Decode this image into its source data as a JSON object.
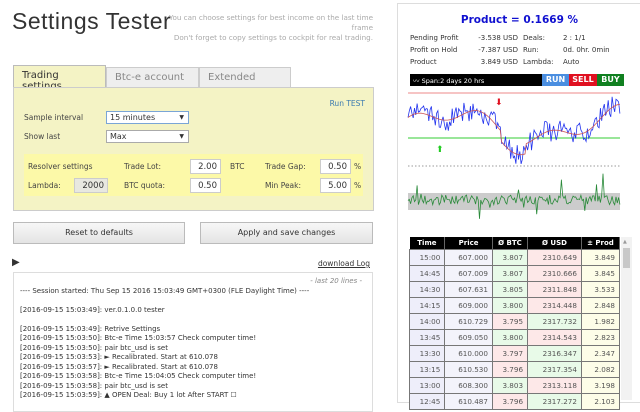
{
  "header": {
    "title": "Settings Tester",
    "hint1": "You can choose settings for best income on the last time frame",
    "hint2": "Don't forget to copy settings to cockpit for real trading."
  },
  "tabs": [
    "Trading settings",
    "Btc-e account",
    "Extended"
  ],
  "settings": {
    "run_test": "Run TEST",
    "sample_interval_label": "Sample interval",
    "sample_interval_value": "15 minutes",
    "show_last_label": "Show last",
    "show_last_value": "Max",
    "resolver_label": "Resolver settings",
    "lambda_label": "Lambda:",
    "lambda_value": "2000",
    "trade_lot_label": "Trade Lot:",
    "trade_lot_value": "2.00",
    "trade_lot_unit": "BTC",
    "btc_quota_label": "BTC quota:",
    "btc_quota_value": "0.50",
    "trade_gap_label": "Trade Gap:",
    "trade_gap_value": "0.50",
    "trade_gap_unit": "%",
    "min_peak_label": "Min Peak:",
    "min_peak_value": "5.00",
    "min_peak_unit": "%"
  },
  "buttons": {
    "reset": "Reset to defaults",
    "apply": "Apply and save changes"
  },
  "log": {
    "download": "download Log",
    "last_lines": "- last 20 lines -",
    "lines": [
      "---- Session started: Thu Sep 15 2016 15:03:49 GMT+0300 (FLE Daylight Time) ----",
      "",
      "[2016-09-15 15:03:49]: ver.0.1.0.0 tester",
      "",
      "[2016-09-15 15:03:49]: Retrive Settings",
      "[2016-09-15 15:03:50]: Btc-e Time 15:03:57 Check computer time!",
      "[2016-09-15 15:03:50]: pair btc_usd is set",
      "[2016-09-15 15:03:53]: ► Recalibrated. Start at 610.078",
      "[2016-09-15 15:03:57]: ► Recalibrated. Start at 610.078",
      "[2016-09-15 15:03:58]: Btc-e Time 15:04:05 Check computer time!",
      "[2016-09-15 15:03:58]: pair btc_usd is set",
      "[2016-09-15 15:03:59]: ▲ OPEN Deal: Buy 1 lot After START   ☐"
    ]
  },
  "summary": {
    "product_title": "Product = 0.1669 %",
    "stats": [
      [
        "Pending Profit",
        "-3.538 USD",
        "Deals:",
        "2 : 1/1"
      ],
      [
        "Profit on Hold",
        "-7.387 USD",
        "Run:",
        "0d. 0hr. 0min"
      ],
      [
        "Product",
        "3.849 USD",
        "Lambda:",
        "Auto"
      ]
    ],
    "span": "Span:2 days 20 hrs",
    "run": "RUN",
    "sell": "SELL",
    "buy": "BUY"
  },
  "colors": {
    "run": "#4a8ee0",
    "sell": "#e01020",
    "buy": "#108020",
    "title": "#1010d0"
  },
  "table": {
    "headers": [
      "Time",
      "Price",
      "Ø BTC",
      "Ø USD",
      "± Prod"
    ],
    "rows": [
      [
        "15:00",
        "607.000",
        "3.807",
        "2310.649",
        "3.849"
      ],
      [
        "14:45",
        "607.009",
        "3.807",
        "2310.666",
        "3.845"
      ],
      [
        "14:30",
        "607.631",
        "3.805",
        "2311.848",
        "3.533"
      ],
      [
        "14:15",
        "609.000",
        "3.800",
        "2314.448",
        "2.848"
      ],
      [
        "14:00",
        "610.729",
        "3.795",
        "2317.732",
        "1.982"
      ],
      [
        "13:45",
        "609.050",
        "3.800",
        "2314.543",
        "2.823"
      ],
      [
        "13:30",
        "610.000",
        "3.797",
        "2316.347",
        "2.347"
      ],
      [
        "13:15",
        "610.530",
        "3.796",
        "2317.354",
        "2.082"
      ],
      [
        "13:00",
        "608.300",
        "3.803",
        "2313.118",
        "3.198"
      ],
      [
        "12:45",
        "610.487",
        "3.796",
        "2317.272",
        "2.103"
      ]
    ],
    "btc_up": [
      true,
      true,
      true,
      true,
      false,
      true,
      false,
      false,
      true,
      false
    ]
  }
}
